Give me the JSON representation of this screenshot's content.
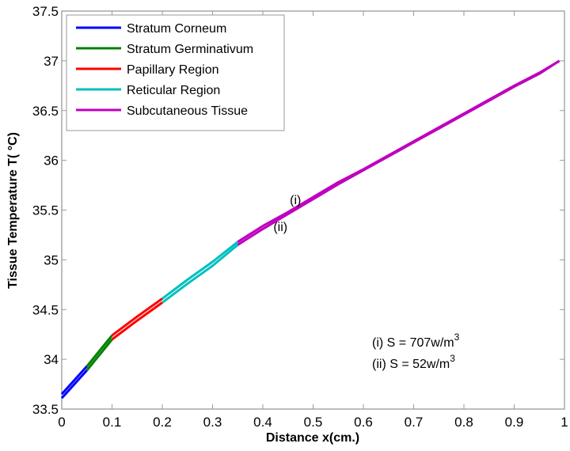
{
  "chart_data": {
    "type": "line",
    "title": "",
    "xlabel": "Distance x(cm.)",
    "ylabel": "Tissue Temperature T( °C)",
    "xlim": [
      0,
      1
    ],
    "ylim": [
      33.5,
      37.5
    ],
    "xticks": [
      0,
      0.1,
      0.2,
      0.3,
      0.4,
      0.5,
      0.6,
      0.7,
      0.8,
      0.9,
      1
    ],
    "xtick_labels": [
      "0",
      "0.1",
      "0.2",
      "0.3",
      "0.4",
      "0.5",
      "0.6",
      "0.7",
      "0.8",
      "0.9",
      "1"
    ],
    "yticks": [
      33.5,
      34,
      34.5,
      35,
      35.5,
      36,
      36.5,
      37,
      37.5
    ],
    "ytick_labels": [
      "33.5",
      "34",
      "34.5",
      "35",
      "35.5",
      "36",
      "36.5",
      "37",
      "37.5"
    ],
    "grid": false,
    "legend_position": "top-left",
    "legend": [
      {
        "label": "Stratum Corneum",
        "color": "#0000ff"
      },
      {
        "label": "Stratum Germinativum",
        "color": "#008000"
      },
      {
        "label": "Papillary Region",
        "color": "#ff0000"
      },
      {
        "label": "Reticular Region",
        "color": "#00bfbf"
      },
      {
        "label": "Subcutaneous Tissue",
        "color": "#bf00bf"
      }
    ],
    "regions": [
      {
        "name": "Stratum Corneum",
        "x_range": [
          0,
          0.05
        ]
      },
      {
        "name": "Stratum Germinativum",
        "x_range": [
          0.05,
          0.1
        ]
      },
      {
        "name": "Papillary Region",
        "x_range": [
          0.1,
          0.2
        ]
      },
      {
        "name": "Reticular Region",
        "x_range": [
          0.2,
          0.35
        ]
      },
      {
        "name": "Subcutaneous Tissue",
        "x_range": [
          0.35,
          1.0
        ]
      }
    ],
    "series": [
      {
        "name": "(i) S = 707w/m3",
        "x": [
          0,
          0.05,
          0.1,
          0.15,
          0.2,
          0.25,
          0.3,
          0.35,
          0.4,
          0.45,
          0.5,
          0.55,
          0.6,
          0.65,
          0.7,
          0.75,
          0.8,
          0.85,
          0.9,
          0.95,
          0.99
        ],
        "y": [
          33.65,
          33.93,
          34.24,
          34.43,
          34.61,
          34.8,
          34.98,
          35.18,
          35.34,
          35.48,
          35.63,
          35.78,
          35.91,
          36.05,
          36.19,
          36.33,
          36.47,
          36.61,
          36.75,
          36.88,
          37.0
        ]
      },
      {
        "name": "(ii) S = 52w/m3",
        "x": [
          0,
          0.05,
          0.1,
          0.15,
          0.2,
          0.25,
          0.3,
          0.35,
          0.4,
          0.45,
          0.5,
          0.55,
          0.6,
          0.65,
          0.7,
          0.75,
          0.8,
          0.85,
          0.9,
          0.95,
          0.99
        ],
        "y": [
          33.61,
          33.89,
          34.2,
          34.39,
          34.57,
          34.76,
          34.94,
          35.15,
          35.31,
          35.46,
          35.61,
          35.76,
          35.9,
          36.04,
          36.18,
          36.32,
          36.46,
          36.6,
          36.74,
          36.87,
          37.0
        ]
      }
    ],
    "annotations": {
      "curve_labels": [
        {
          "text": "(i)",
          "x": 0.465,
          "y": 35.56
        },
        {
          "text": "(ii)",
          "x": 0.435,
          "y": 35.29
        }
      ],
      "notes": [
        {
          "prefix": "(i) S = 707w/m",
          "sup": "3"
        },
        {
          "prefix": "(ii) S = 52w/m",
          "sup": "3"
        }
      ]
    }
  }
}
